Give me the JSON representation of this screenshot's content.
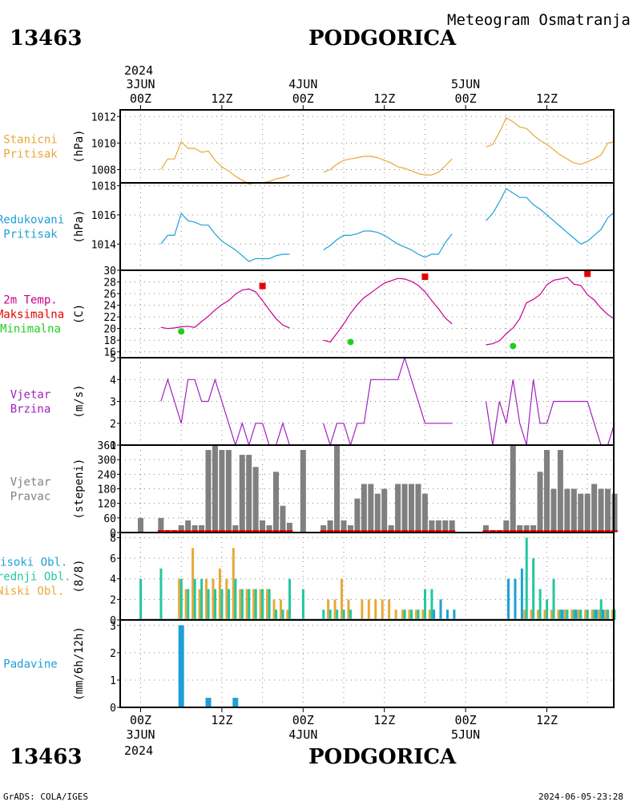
{
  "header": {
    "station_id": "13463",
    "city": "PODGORICA",
    "subtitle": "Meteogram Osmatranja",
    "year": "2024"
  },
  "footer": {
    "credit": "GrADS: COLA/IGES",
    "timestamp": "2024-06-05-23:28"
  },
  "time_axis": {
    "top_days": [
      "3JUN",
      "4JUN",
      "5JUN"
    ],
    "top_year": "2024",
    "tick_labels": [
      "00Z",
      "12Z",
      "00Z",
      "12Z",
      "00Z",
      "12Z"
    ],
    "bottom_days": [
      "3JUN",
      "4JUN",
      "5JUN"
    ],
    "bottom_year": "2024"
  },
  "colors": {
    "orange": "#e8a838",
    "cyan": "#1da0d8",
    "magenta": "#c8008c",
    "red": "#e80000",
    "green": "#22cc22",
    "purple": "#a020c0",
    "gray": "#808080",
    "teal": "#22c8a0"
  },
  "chart_data": [
    {
      "type": "line",
      "labels": [
        "Stanicni",
        "Pritisak"
      ],
      "ylabel": "(hPa)",
      "ylim": [
        1007,
        1012.5
      ],
      "yticks": [
        1008,
        1010,
        1012
      ],
      "series": [
        {
          "color": "orange",
          "x": [
            3,
            4,
            5,
            6,
            7,
            8,
            9,
            10,
            11,
            12,
            13,
            14,
            15,
            16,
            17,
            18,
            19,
            20,
            21,
            22
          ],
          "y": [
            1008,
            1008.8,
            1008.8,
            1010.1,
            1009.6,
            1009.6,
            1009.3,
            1009.4,
            1008.7,
            1008.2,
            1007.9,
            1007.5,
            1007.2,
            1006.9,
            1007,
            1007,
            1007.1,
            1007.3,
            1007.4,
            1007.6
          ]
        },
        {
          "color": "orange",
          "x": [
            27,
            28,
            29,
            30,
            31,
            32,
            33,
            34,
            35,
            36,
            37,
            38,
            39,
            40,
            41,
            42,
            43,
            44,
            45,
            46
          ],
          "y": [
            1007.8,
            1008,
            1008.4,
            1008.7,
            1008.8,
            1008.9,
            1009,
            1009,
            1008.9,
            1008.7,
            1008.5,
            1008.2,
            1008.1,
            1007.9,
            1007.7,
            1007.6,
            1007.6,
            1007.8,
            1008.3,
            1008.8
          ]
        },
        {
          "color": "orange",
          "x": [
            51,
            52,
            53,
            54,
            55,
            56,
            57,
            58,
            59,
            60,
            61,
            62,
            63,
            64,
            65,
            66,
            67,
            68,
            69,
            70
          ],
          "y": [
            1009.7,
            1009.9,
            1010.8,
            1011.9,
            1011.6,
            1011.2,
            1011.1,
            1010.6,
            1010.2,
            1009.9,
            1009.5,
            1009.1,
            1008.8,
            1008.5,
            1008.4,
            1008.6,
            1008.8,
            1009.1,
            1010,
            1010.1
          ]
        }
      ]
    },
    {
      "type": "line",
      "labels": [
        "Redukovani",
        "Pritisak"
      ],
      "ylabel": "(hPa)",
      "ylim": [
        1012.2,
        1018.2
      ],
      "yticks": [
        1014,
        1016,
        1018
      ],
      "series": [
        {
          "color": "cyan",
          "x": [
            3,
            4,
            5,
            6,
            7,
            8,
            9,
            10,
            11,
            12,
            13,
            14,
            15,
            16,
            17,
            18,
            19,
            20,
            21,
            22
          ],
          "y": [
            1014,
            1014.6,
            1014.6,
            1016.1,
            1015.6,
            1015.5,
            1015.3,
            1015.3,
            1014.7,
            1014.2,
            1013.9,
            1013.6,
            1013.2,
            1012.8,
            1013,
            1013,
            1013,
            1013.2,
            1013.3,
            1013.3
          ]
        },
        {
          "color": "cyan",
          "x": [
            27,
            28,
            29,
            30,
            31,
            32,
            33,
            34,
            35,
            36,
            37,
            38,
            39,
            40,
            41,
            42,
            43,
            44,
            45,
            46
          ],
          "y": [
            1013.6,
            1013.9,
            1014.3,
            1014.6,
            1014.6,
            1014.7,
            1014.9,
            1014.9,
            1014.8,
            1014.6,
            1014.3,
            1014,
            1013.8,
            1013.6,
            1013.3,
            1013.1,
            1013.3,
            1013.3,
            1014.1,
            1014.7
          ]
        },
        {
          "color": "cyan",
          "x": [
            51,
            52,
            53,
            54,
            55,
            56,
            57,
            58,
            59,
            60,
            61,
            62,
            63,
            64,
            65,
            66,
            67,
            68,
            69,
            70
          ],
          "y": [
            1015.6,
            1016.1,
            1016.9,
            1017.8,
            1017.5,
            1017.2,
            1017.2,
            1016.7,
            1016.4,
            1016,
            1015.6,
            1015.2,
            1014.8,
            1014.4,
            1014,
            1014.2,
            1014.6,
            1015,
            1015.8,
            1016.2
          ]
        }
      ]
    },
    {
      "type": "line",
      "labels": [
        "2m Temp.",
        "Maksimalna",
        "Minimalna"
      ],
      "label_colors": [
        "magenta",
        "red",
        "green"
      ],
      "ylabel": "(C)",
      "ylim": [
        15,
        30
      ],
      "yticks": [
        16,
        18,
        20,
        22,
        24,
        26,
        28,
        30
      ],
      "series": [
        {
          "color": "magenta",
          "x": [
            3,
            4,
            5,
            6,
            7,
            8,
            9,
            10,
            11,
            12,
            13,
            14,
            15,
            16,
            17,
            18,
            19,
            20,
            21,
            22
          ],
          "y": [
            20.2,
            20,
            20.1,
            20.3,
            20.4,
            20.2,
            21.2,
            22.1,
            23.2,
            24.1,
            24.8,
            25.9,
            26.6,
            26.8,
            26.3,
            24.8,
            23.2,
            21.7,
            20.6,
            20.1
          ]
        },
        {
          "color": "magenta",
          "x": [
            27,
            28,
            29,
            30,
            31,
            32,
            33,
            34,
            35,
            36,
            37,
            38,
            39,
            40,
            41,
            42,
            43,
            44,
            45,
            46
          ],
          "y": [
            18,
            17.7,
            19.2,
            20.8,
            22.6,
            24.1,
            25.3,
            26.1,
            27,
            27.8,
            28.2,
            28.6,
            28.5,
            28.1,
            27.4,
            26.3,
            24.8,
            23.4,
            21.8,
            20.8
          ]
        },
        {
          "color": "magenta",
          "x": [
            51,
            52,
            53,
            54,
            55,
            56,
            57,
            58,
            59,
            60,
            61,
            62,
            63,
            64,
            65,
            66,
            67,
            68,
            69,
            70
          ],
          "y": [
            17.2,
            17.4,
            17.9,
            19.1,
            20.1,
            21.7,
            24.4,
            25,
            25.8,
            27.5,
            28.3,
            28.5,
            28.8,
            27.6,
            27.4,
            25.8,
            24.9,
            23.5,
            22.4,
            21.6
          ]
        }
      ],
      "maxima": {
        "color": "red",
        "x": [
          18,
          42,
          66
        ],
        "y": [
          27.3,
          28.9,
          29.4
        ]
      },
      "minima": {
        "color": "green",
        "x": [
          6,
          31,
          55
        ],
        "y": [
          19.5,
          17.7,
          17
        ]
      }
    },
    {
      "type": "line",
      "labels": [
        "Vjetar",
        "Brzina"
      ],
      "ylabel": "(m/s)",
      "ylim": [
        1,
        5
      ],
      "yticks": [
        1,
        2,
        3,
        4,
        5
      ],
      "series": [
        {
          "color": "purple",
          "x": [
            3,
            4,
            5,
            6,
            7,
            8,
            9,
            10,
            11,
            12,
            13,
            14,
            15,
            16,
            17,
            18,
            19,
            20,
            21,
            22
          ],
          "y": [
            3,
            4,
            3,
            2,
            4,
            4,
            3,
            3,
            4,
            3,
            2,
            1,
            2,
            1,
            2,
            2,
            1,
            1,
            2,
            1
          ]
        },
        {
          "color": "purple",
          "x": [
            27,
            28,
            29,
            30,
            31,
            32,
            33,
            34,
            35,
            36,
            37,
            38,
            39,
            40,
            41,
            42,
            43,
            44,
            45,
            46
          ],
          "y": [
            2,
            1,
            2,
            2,
            1,
            2,
            2,
            4,
            4,
            4,
            4,
            4,
            5,
            4,
            3,
            2,
            2,
            2,
            2,
            2
          ]
        },
        {
          "color": "purple",
          "x": [
            51,
            52,
            53,
            54,
            55,
            56,
            57,
            58,
            59,
            60,
            61,
            62,
            63,
            64,
            65,
            66,
            67,
            68,
            69,
            70
          ],
          "y": [
            3,
            1,
            3,
            2,
            4,
            2,
            1,
            4,
            2,
            2,
            3,
            3,
            3,
            3,
            3,
            3,
            2,
            1,
            1,
            2
          ]
        }
      ]
    },
    {
      "type": "bar",
      "labels": [
        "Vjetar",
        "Pravac"
      ],
      "ylabel": "(stepeni)",
      "ylim": [
        0,
        360
      ],
      "yticks": [
        0,
        60,
        120,
        180,
        240,
        300,
        360
      ],
      "color": "gray",
      "x": [
        0,
        3,
        6,
        7,
        8,
        9,
        10,
        11,
        12,
        13,
        14,
        15,
        16,
        17,
        18,
        19,
        20,
        21,
        22,
        24,
        27,
        28,
        29,
        30,
        31,
        32,
        33,
        34,
        35,
        36,
        37,
        38,
        39,
        40,
        41,
        42,
        43,
        44,
        45,
        46,
        51,
        54,
        55,
        56,
        57,
        58,
        59,
        60,
        61,
        62,
        63,
        64,
        65,
        66,
        67,
        68,
        69,
        70
      ],
      "values": [
        60,
        60,
        30,
        50,
        30,
        30,
        340,
        360,
        340,
        340,
        30,
        320,
        320,
        270,
        50,
        30,
        250,
        110,
        40,
        340,
        30,
        50,
        360,
        50,
        30,
        140,
        200,
        200,
        160,
        180,
        30,
        200,
        200,
        200,
        200,
        160,
        50,
        50,
        50,
        50,
        30,
        50,
        360,
        30,
        30,
        30,
        250,
        340,
        180,
        340,
        180,
        180,
        160,
        160,
        200,
        180,
        180,
        160
      ],
      "zero_marker_x": [
        3,
        4,
        5,
        6,
        7,
        8,
        9,
        10,
        11,
        12,
        13,
        14,
        15,
        16,
        17,
        18,
        19,
        20,
        21,
        22,
        27,
        28,
        29,
        30,
        31,
        32,
        33,
        34,
        35,
        36,
        37,
        38,
        39,
        40,
        41,
        42,
        43,
        44,
        45,
        46,
        51,
        52,
        53,
        54,
        55,
        56,
        57,
        58,
        59,
        60,
        61,
        62,
        63,
        64,
        65,
        66,
        67,
        68,
        69,
        70
      ]
    },
    {
      "type": "bar",
      "labels": [
        "Visoki Obl.",
        "Srednji Obl.",
        "Niski Obl."
      ],
      "label_colors": [
        "cyan",
        "teal",
        "orange"
      ],
      "ylabel": "(8/8)",
      "ylim": [
        0,
        8.5
      ],
      "yticks": [
        0,
        2,
        4,
        6,
        8
      ],
      "x": [
        0,
        3,
        6,
        7,
        8,
        9,
        10,
        11,
        12,
        13,
        14,
        15,
        16,
        17,
        18,
        19,
        20,
        21,
        22,
        24,
        27,
        28,
        29,
        30,
        31,
        32,
        33,
        34,
        35,
        36,
        37,
        38,
        39,
        40,
        41,
        42,
        43,
        44,
        45,
        46,
        51,
        54,
        55,
        56,
        57,
        58,
        59,
        60,
        61,
        62,
        63,
        64,
        65,
        66,
        67,
        68,
        69,
        70
      ],
      "series": [
        {
          "name": "Visoki Obl.",
          "color": "cyan",
          "values": [
            0,
            0,
            0,
            0,
            0,
            0,
            0,
            0,
            0,
            0,
            0,
            0,
            0,
            0,
            0,
            0,
            0,
            0,
            0,
            0,
            0,
            0,
            0,
            0,
            0,
            0,
            0,
            0,
            0,
            0,
            0,
            0,
            0,
            0,
            0,
            0,
            1,
            2,
            1,
            1,
            0,
            4,
            4,
            5,
            0,
            0,
            0,
            0,
            0,
            1,
            0,
            1,
            0,
            0,
            1,
            1,
            0,
            0
          ]
        },
        {
          "name": "Srednji Obl.",
          "color": "teal",
          "values": [
            4,
            5,
            4,
            3,
            4,
            4,
            3,
            3,
            3,
            3,
            4,
            3,
            3,
            3,
            3,
            3,
            1,
            1,
            4,
            3,
            1,
            1,
            1,
            1,
            1,
            0,
            0,
            0,
            0,
            0,
            0,
            0,
            1,
            1,
            1,
            3,
            3,
            0,
            0,
            0,
            0,
            0,
            0,
            0,
            8,
            6,
            3,
            2,
            4,
            1,
            1,
            1,
            1,
            1,
            1,
            2,
            1,
            1
          ]
        },
        {
          "name": "Niski Obl.",
          "color": "orange",
          "values": [
            0,
            0,
            4,
            3,
            7,
            3,
            4,
            4,
            5,
            4,
            7,
            3,
            3,
            3,
            3,
            3,
            2,
            2,
            1,
            0,
            0,
            2,
            2,
            4,
            2,
            0,
            2,
            2,
            2,
            2,
            2,
            1,
            1,
            1,
            1,
            1,
            1,
            0,
            0,
            0,
            0,
            0,
            0,
            0,
            1,
            1,
            1,
            1,
            1,
            1,
            1,
            1,
            1,
            1,
            1,
            1,
            1,
            1
          ]
        }
      ]
    },
    {
      "type": "bar",
      "labels": [
        "Padavine"
      ],
      "label_colors": [
        "cyan"
      ],
      "ylabel": "(mm/6h/12h)",
      "ylim": [
        0,
        3.2
      ],
      "yticks": [
        0,
        1,
        2,
        3
      ],
      "color": "cyan",
      "x": [
        6,
        10,
        14
      ],
      "values": [
        3,
        0.35,
        0.35
      ]
    }
  ]
}
